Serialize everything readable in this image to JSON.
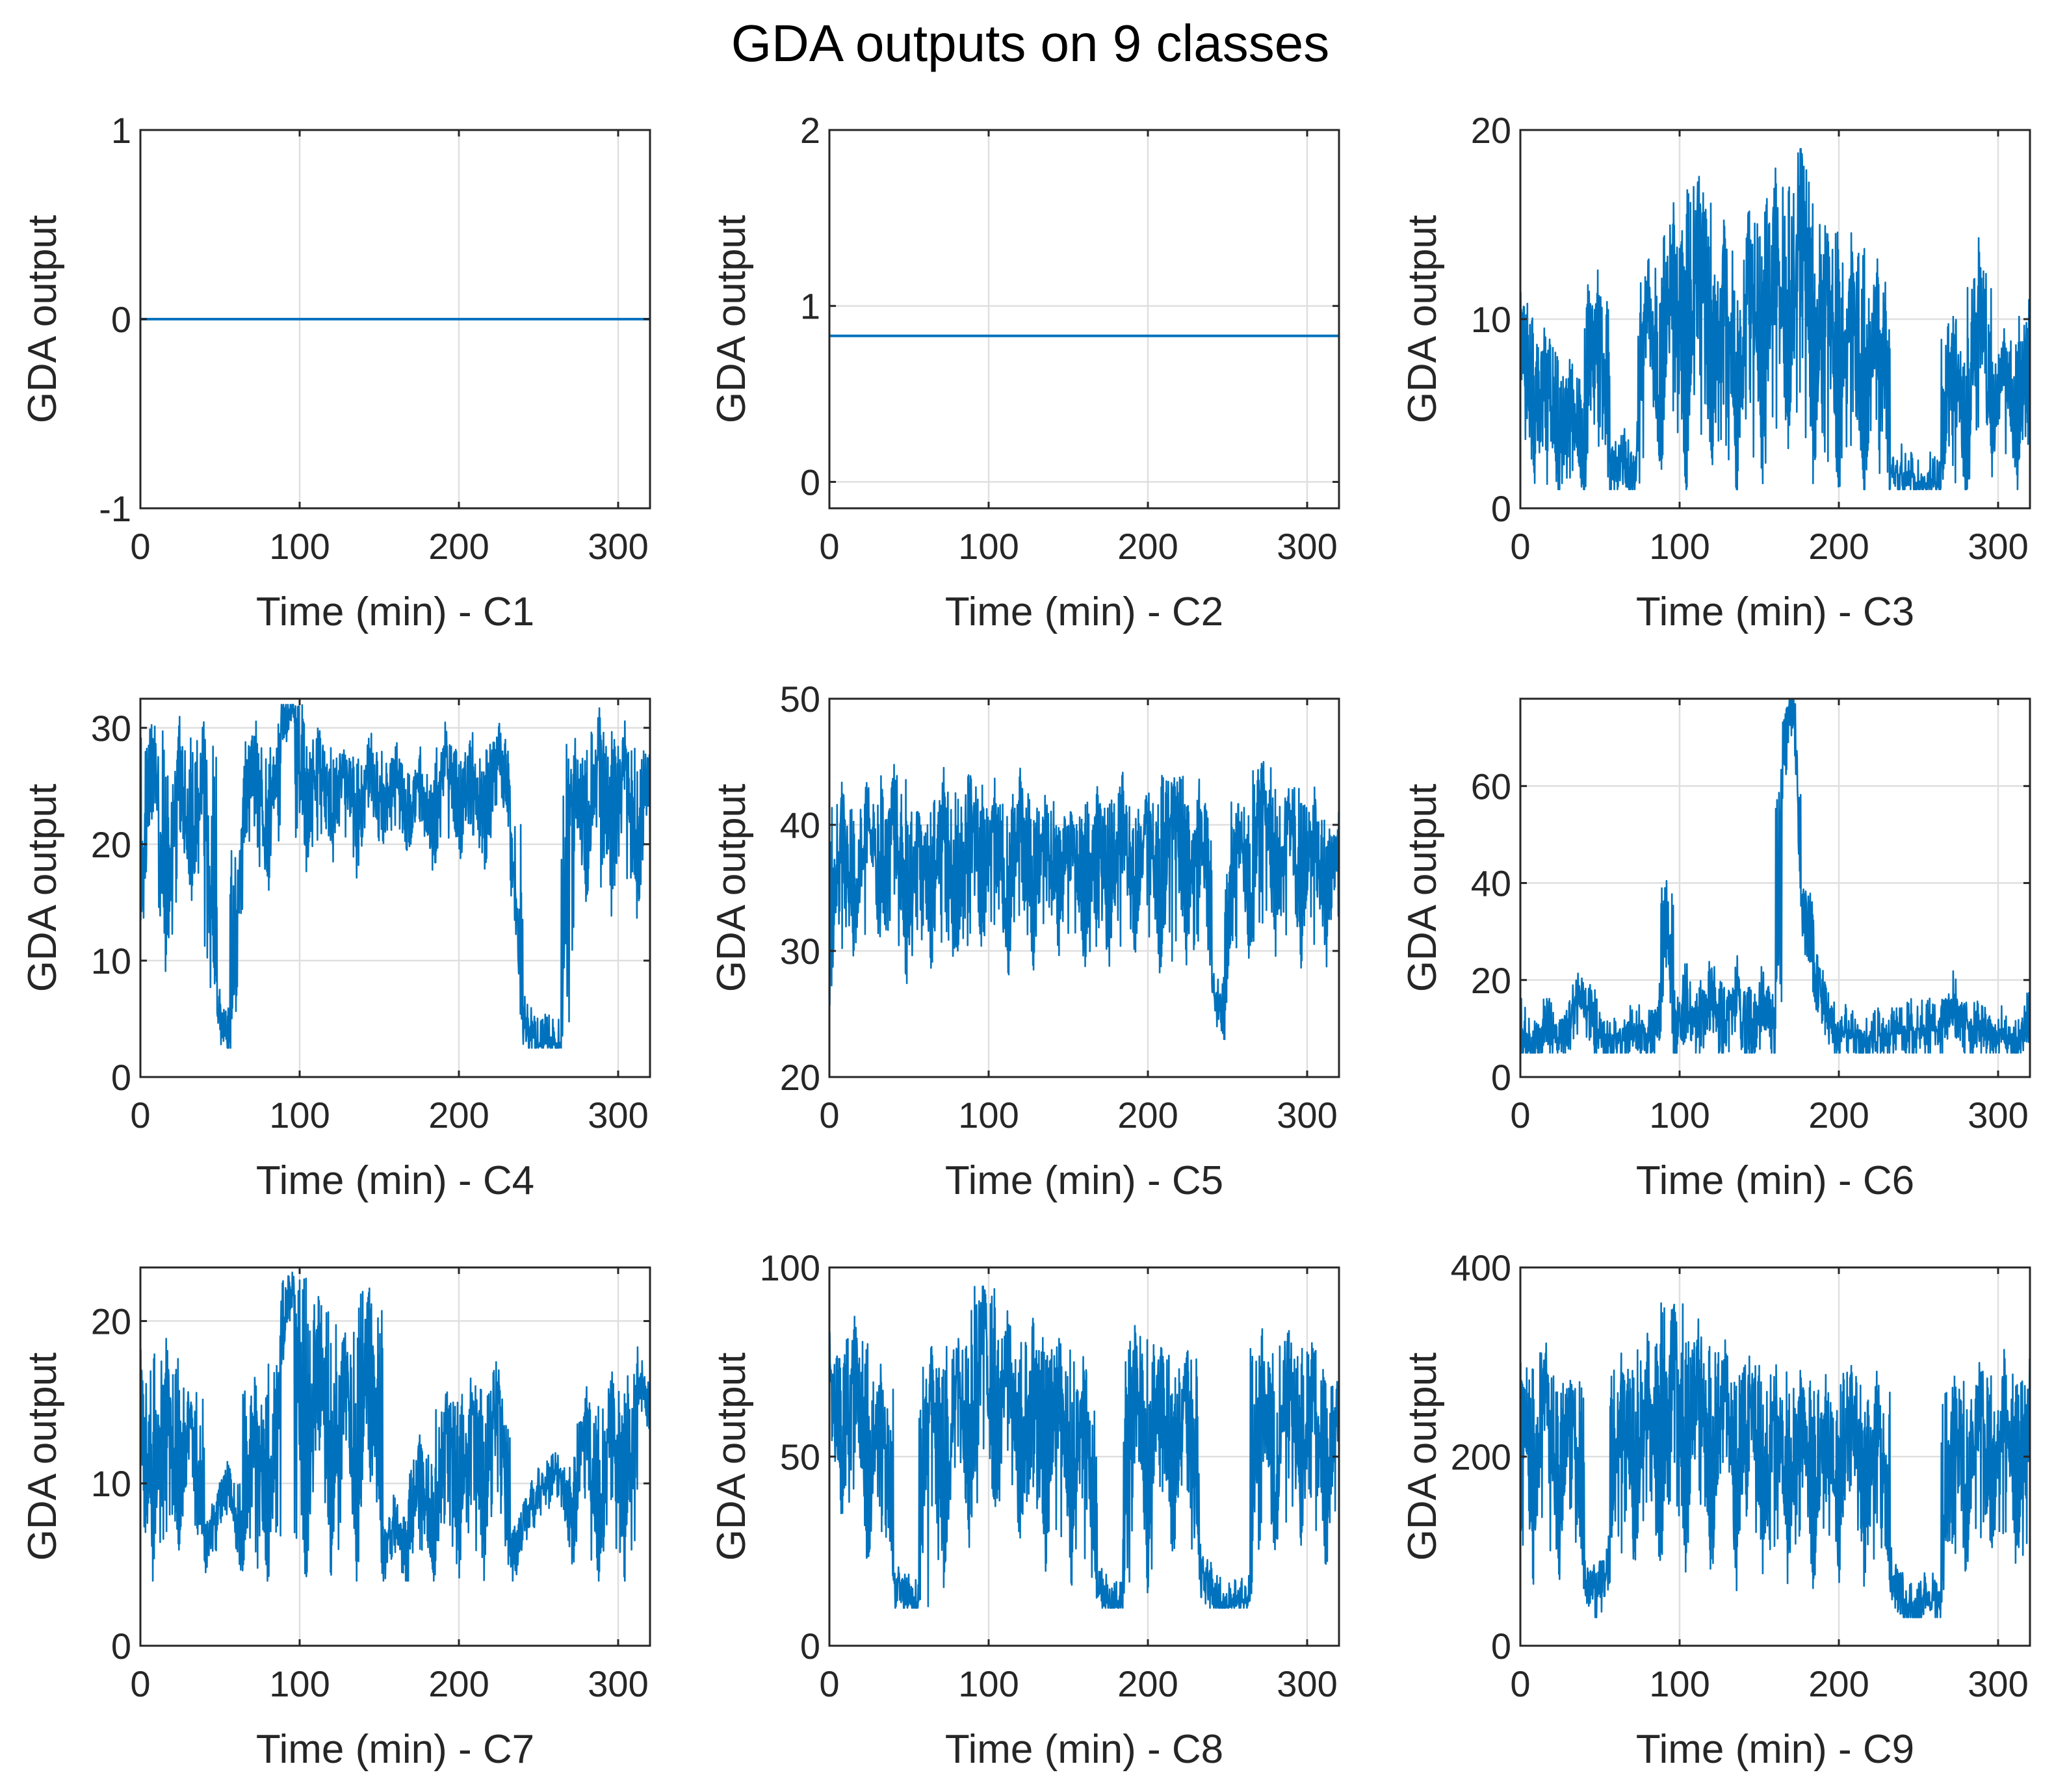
{
  "figure": {
    "title": "GDA outputs on 9 classes",
    "line_color": "#0072BD",
    "grid_color": "#dfdfdf",
    "axis_color": "#262626"
  },
  "chart_data": [
    {
      "type": "line",
      "class": "C1",
      "xlabel": "Time (min) - C1",
      "ylabel": "GDA output",
      "xlim": [
        0,
        320
      ],
      "ylim": [
        -1,
        1
      ],
      "xticks": [
        0,
        100,
        200,
        300
      ],
      "yticks": [
        -1,
        0,
        1
      ],
      "grid": true,
      "series": [
        {
          "name": "C1",
          "x": [
            0,
            80,
            160,
            240,
            320
          ],
          "values": [
            0,
            0,
            0,
            0,
            0
          ]
        }
      ]
    },
    {
      "type": "line",
      "class": "C2",
      "xlabel": "Time (min) - C2",
      "ylabel": "GDA output",
      "xlim": [
        0,
        320
      ],
      "ylim": [
        -0.15,
        2
      ],
      "xticks": [
        0,
        100,
        200,
        300
      ],
      "yticks": [
        0,
        1,
        2
      ],
      "grid": true,
      "series": [
        {
          "name": "C2",
          "x": [
            0,
            80,
            160,
            240,
            320
          ],
          "values": [
            0.83,
            0.83,
            0.83,
            0.83,
            0.83
          ]
        }
      ]
    },
    {
      "type": "line",
      "class": "C3",
      "xlabel": "Time (min) - C3",
      "ylabel": "GDA output",
      "xlim": [
        0,
        320
      ],
      "ylim": [
        0,
        20
      ],
      "xticks": [
        0,
        100,
        200,
        300
      ],
      "yticks": [
        0,
        10,
        20
      ],
      "grid": true,
      "series": [
        {
          "name": "C3",
          "x": [
            0,
            8,
            16,
            24,
            32,
            40,
            48,
            56,
            64,
            72,
            80,
            88,
            96,
            104,
            112,
            120,
            128,
            136,
            144,
            152,
            160,
            168,
            176,
            184,
            192,
            200,
            208,
            216,
            224,
            232,
            240,
            248,
            256,
            264,
            272,
            280,
            288,
            296,
            304,
            312,
            320
          ],
          "values": [
            11,
            2,
            9,
            1,
            7,
            1,
            12,
            1.5,
            3,
            1,
            13,
            2,
            15,
            1.5,
            17,
            2,
            14,
            1,
            16,
            2,
            17,
            3,
            19,
            2,
            15,
            1,
            14,
            1,
            12,
            1.5,
            2,
            1,
            1.5,
            1,
            10,
            1,
            13,
            2,
            9,
            1,
            11
          ]
        }
      ]
    },
    {
      "type": "line",
      "class": "C4",
      "xlabel": "Time (min) - C4",
      "ylabel": "GDA output",
      "xlim": [
        0,
        320
      ],
      "ylim": [
        0,
        32.5
      ],
      "xticks": [
        0,
        100,
        200,
        300
      ],
      "yticks": [
        0,
        10,
        20,
        30
      ],
      "grid": true,
      "series": [
        {
          "name": "C4",
          "x": [
            0,
            8,
            16,
            24,
            32,
            40,
            48,
            56,
            64,
            72,
            80,
            88,
            96,
            104,
            112,
            120,
            128,
            136,
            144,
            152,
            160,
            168,
            176,
            184,
            192,
            200,
            208,
            216,
            224,
            232,
            240,
            248,
            256,
            264,
            272,
            280,
            288,
            296,
            304,
            312,
            320
          ],
          "values": [
            13,
            30,
            10,
            30,
            16,
            29,
            6,
            3,
            20,
            29,
            17,
            30,
            32,
            19,
            29,
            20,
            28,
            19,
            28,
            21,
            27,
            21,
            26,
            19,
            29,
            20,
            28,
            19,
            29,
            22,
            5,
            2.5,
            3,
            2.5,
            29,
            17,
            30,
            16,
            29,
            15,
            28
          ]
        }
      ]
    },
    {
      "type": "line",
      "class": "C5",
      "xlabel": "Time (min) - C5",
      "ylabel": "GDA output",
      "xlim": [
        0,
        320
      ],
      "ylim": [
        20,
        50
      ],
      "xticks": [
        0,
        100,
        200,
        300
      ],
      "yticks": [
        20,
        30,
        40,
        50
      ],
      "grid": true,
      "series": [
        {
          "name": "C5",
          "x": [
            0,
            8,
            16,
            24,
            32,
            40,
            48,
            56,
            64,
            72,
            80,
            88,
            96,
            104,
            112,
            120,
            128,
            136,
            144,
            152,
            160,
            168,
            176,
            184,
            192,
            200,
            208,
            216,
            224,
            232,
            240,
            248,
            256,
            264,
            272,
            280,
            288,
            296,
            304,
            312,
            320
          ],
          "values": [
            26,
            42,
            30,
            43,
            31,
            44,
            28,
            41,
            30,
            43,
            29,
            44,
            31,
            42,
            29,
            43,
            30,
            42,
            31,
            41,
            29,
            42,
            30,
            43,
            31,
            42,
            29,
            44,
            30,
            42,
            28,
            23,
            42,
            30,
            45,
            31,
            43,
            30,
            42,
            30,
            40
          ]
        }
      ]
    },
    {
      "type": "line",
      "class": "C6",
      "xlabel": "Time (min) - C6",
      "ylabel": "GDA output",
      "xlim": [
        0,
        320
      ],
      "ylim": [
        0,
        78
      ],
      "xticks": [
        0,
        100,
        200,
        300
      ],
      "yticks": [
        0,
        20,
        40,
        60
      ],
      "grid": true,
      "series": [
        {
          "name": "C6",
          "x": [
            0,
            8,
            16,
            24,
            32,
            40,
            48,
            56,
            64,
            72,
            80,
            88,
            92,
            96,
            104,
            112,
            120,
            128,
            136,
            144,
            152,
            160,
            164,
            168,
            172,
            176,
            184,
            192,
            200,
            208,
            216,
            224,
            232,
            240,
            248,
            256,
            264,
            272,
            280,
            288,
            296,
            304,
            312,
            320
          ],
          "values": [
            10,
            5,
            11,
            6,
            12,
            18,
            7,
            9,
            6,
            11,
            5,
            14,
            40,
            5,
            18,
            6,
            20,
            5,
            19,
            5,
            18,
            7,
            60,
            75,
            78,
            40,
            22,
            12,
            7,
            10,
            6,
            8,
            9,
            9,
            10,
            10,
            9,
            16,
            8,
            12,
            6,
            10,
            5,
            13
          ]
        }
      ]
    },
    {
      "type": "line",
      "class": "C7",
      "xlabel": "Time (min) - C7",
      "ylabel": "GDA output",
      "xlim": [
        0,
        320
      ],
      "ylim": [
        0,
        23.3
      ],
      "xticks": [
        0,
        100,
        200,
        300
      ],
      "yticks": [
        0,
        10,
        20
      ],
      "grid": true,
      "series": [
        {
          "name": "C7",
          "x": [
            0,
            8,
            16,
            24,
            32,
            40,
            48,
            56,
            64,
            72,
            80,
            88,
            96,
            104,
            112,
            120,
            128,
            136,
            144,
            152,
            160,
            168,
            176,
            184,
            192,
            200,
            208,
            216,
            224,
            232,
            240,
            248,
            256,
            264,
            272,
            280,
            288,
            296,
            304,
            312,
            320
          ],
          "values": [
            17,
            5,
            18,
            6,
            16,
            5.5,
            8,
            10,
            5,
            16,
            4.5,
            18,
            23,
            4,
            21,
            5,
            20,
            4.5,
            22,
            5,
            8,
            4.5,
            12,
            4.5,
            15,
            5,
            16,
            5,
            17,
            5,
            7,
            9,
            10,
            11,
            6,
            15,
            5,
            16,
            5,
            17,
            14
          ]
        }
      ]
    },
    {
      "type": "line",
      "class": "C8",
      "xlabel": "Time (min) - C8",
      "ylabel": "GDA output",
      "xlim": [
        0,
        320
      ],
      "ylim": [
        0,
        100
      ],
      "xticks": [
        0,
        100,
        200,
        300
      ],
      "yticks": [
        0,
        50,
        100
      ],
      "grid": true,
      "series": [
        {
          "name": "C8",
          "x": [
            0,
            8,
            16,
            24,
            32,
            40,
            48,
            56,
            64,
            72,
            80,
            88,
            96,
            104,
            112,
            120,
            128,
            136,
            144,
            152,
            160,
            168,
            176,
            184,
            192,
            200,
            208,
            216,
            224,
            232,
            240,
            248,
            256,
            264,
            272,
            280,
            288,
            296,
            304,
            312,
            320
          ],
          "values": [
            80,
            35,
            82,
            25,
            70,
            18,
            12,
            10,
            75,
            20,
            80,
            30,
            95,
            35,
            85,
            30,
            82,
            25,
            80,
            22,
            75,
            15,
            10,
            12,
            82,
            20,
            80,
            25,
            78,
            22,
            12,
            10,
            11,
            12,
            80,
            25,
            82,
            30,
            80,
            25,
            70
          ]
        }
      ]
    },
    {
      "type": "line",
      "class": "C9",
      "xlabel": "Time (min) - C9",
      "ylabel": "GDA output",
      "xlim": [
        0,
        320
      ],
      "ylim": [
        0,
        400
      ],
      "xticks": [
        0,
        100,
        200,
        300
      ],
      "yticks": [
        0,
        200,
        400
      ],
      "grid": true,
      "series": [
        {
          "name": "C9",
          "x": [
            0,
            8,
            16,
            24,
            32,
            40,
            48,
            56,
            64,
            72,
            80,
            88,
            96,
            104,
            112,
            120,
            128,
            136,
            144,
            152,
            160,
            168,
            176,
            184,
            192,
            200,
            208,
            216,
            224,
            232,
            240,
            248,
            256,
            264,
            272,
            280,
            288,
            296,
            304,
            312,
            320
          ],
          "values": [
            300,
            90,
            310,
            85,
            280,
            80,
            50,
            90,
            300,
            95,
            320,
            90,
            370,
            85,
            330,
            90,
            310,
            80,
            300,
            90,
            290,
            85,
            280,
            80,
            270,
            90,
            290,
            85,
            270,
            80,
            50,
            30,
            60,
            35,
            280,
            90,
            300,
            95,
            290,
            90,
            280
          ]
        }
      ]
    }
  ]
}
